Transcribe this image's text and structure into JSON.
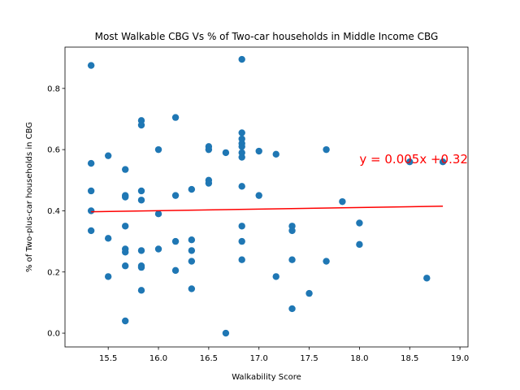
{
  "chart_data": {
    "type": "scatter",
    "title": "Most Walkable CBG Vs % of Two-car households in Middle Income CBG",
    "xlabel": "Walkability Score",
    "ylabel": "% of Two-plus-car households in CBG",
    "xlim": [
      15.07,
      19.08
    ],
    "ylim": [
      -0.045,
      0.935
    ],
    "xticks": [
      "15.5",
      "16.0",
      "16.5",
      "17.0",
      "17.5",
      "18.0",
      "18.5",
      "19.0"
    ],
    "xtick_values": [
      15.5,
      16.0,
      16.5,
      17.0,
      17.5,
      18.0,
      18.5,
      19.0
    ],
    "yticks": [
      "0.0",
      "0.2",
      "0.4",
      "0.6",
      "0.8"
    ],
    "ytick_values": [
      0.0,
      0.2,
      0.4,
      0.6,
      0.8
    ],
    "grid": false,
    "point_color": "#1f77b4",
    "line_color": "#ff0000",
    "points": [
      [
        15.33,
        0.875
      ],
      [
        15.33,
        0.555
      ],
      [
        15.33,
        0.465
      ],
      [
        15.33,
        0.4
      ],
      [
        15.33,
        0.335
      ],
      [
        15.5,
        0.58
      ],
      [
        15.5,
        0.31
      ],
      [
        15.5,
        0.185
      ],
      [
        15.67,
        0.535
      ],
      [
        15.67,
        0.45
      ],
      [
        15.67,
        0.445
      ],
      [
        15.67,
        0.35
      ],
      [
        15.67,
        0.275
      ],
      [
        15.67,
        0.265
      ],
      [
        15.67,
        0.22
      ],
      [
        15.67,
        0.04
      ],
      [
        15.83,
        0.695
      ],
      [
        15.83,
        0.68
      ],
      [
        15.83,
        0.465
      ],
      [
        15.83,
        0.435
      ],
      [
        15.83,
        0.27
      ],
      [
        15.83,
        0.22
      ],
      [
        15.83,
        0.215
      ],
      [
        15.83,
        0.14
      ],
      [
        16.0,
        0.6
      ],
      [
        16.0,
        0.39
      ],
      [
        16.0,
        0.275
      ],
      [
        16.17,
        0.705
      ],
      [
        16.17,
        0.45
      ],
      [
        16.17,
        0.3
      ],
      [
        16.17,
        0.205
      ],
      [
        16.33,
        0.47
      ],
      [
        16.33,
        0.305
      ],
      [
        16.33,
        0.27
      ],
      [
        16.33,
        0.235
      ],
      [
        16.33,
        0.145
      ],
      [
        16.5,
        0.61
      ],
      [
        16.5,
        0.6
      ],
      [
        16.5,
        0.5
      ],
      [
        16.5,
        0.49
      ],
      [
        16.67,
        0.59
      ],
      [
        16.67,
        0.0
      ],
      [
        16.83,
        0.895
      ],
      [
        16.83,
        0.655
      ],
      [
        16.83,
        0.635
      ],
      [
        16.83,
        0.62
      ],
      [
        16.83,
        0.61
      ],
      [
        16.83,
        0.59
      ],
      [
        16.83,
        0.575
      ],
      [
        16.83,
        0.48
      ],
      [
        16.83,
        0.35
      ],
      [
        16.83,
        0.3
      ],
      [
        16.83,
        0.24
      ],
      [
        17.0,
        0.595
      ],
      [
        17.0,
        0.45
      ],
      [
        17.17,
        0.585
      ],
      [
        17.17,
        0.185
      ],
      [
        17.33,
        0.35
      ],
      [
        17.33,
        0.335
      ],
      [
        17.33,
        0.24
      ],
      [
        17.33,
        0.08
      ],
      [
        17.5,
        0.13
      ],
      [
        17.67,
        0.6
      ],
      [
        17.67,
        0.235
      ],
      [
        17.83,
        0.43
      ],
      [
        18.0,
        0.36
      ],
      [
        18.0,
        0.29
      ],
      [
        18.5,
        0.56
      ],
      [
        18.67,
        0.18
      ],
      [
        18.83,
        0.56
      ]
    ],
    "regression_line": {
      "x": [
        15.33,
        18.83
      ],
      "y": [
        0.397,
        0.415
      ]
    },
    "annotation": {
      "text": "y = 0.005x +0.32",
      "x": 18.0,
      "y": 0.555
    }
  }
}
